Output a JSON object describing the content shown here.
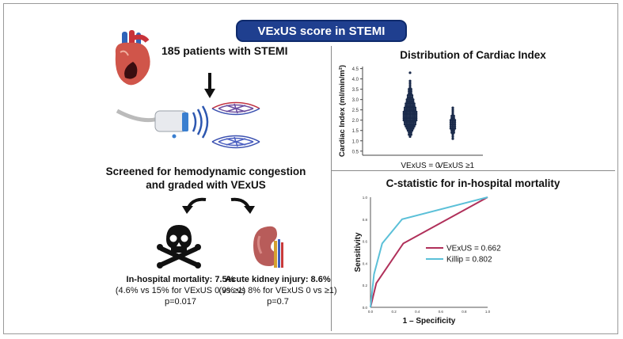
{
  "title": "VExUS score in STEMI",
  "left_panel": {
    "patients": "185 patients with STEMI",
    "screened_line1": "Screened for hemodynamic congestion",
    "screened_line2": "and graded with VExUS",
    "mortality": {
      "label": "In-hospital mortality: 7.5%",
      "detail": "(4.6% vs 15% for VExUS 0 vs ≥1)",
      "p": "p=0.017"
    },
    "aki": {
      "label": "Acute kidney injury: 8.6%",
      "detail": "(9% vs 8% for VExUS 0 vs ≥1)",
      "p": "p=0.7"
    }
  },
  "colors": {
    "title_bg": "#1f3f8f",
    "dots": "#1a2a4a",
    "vexus_line": "#b0305a",
    "killip_line": "#5bc0d8"
  },
  "chart_data": [
    {
      "type": "scatter",
      "title": "Distribution of Cardiac Index",
      "ylabel": "Cardiac Index (ml/min/m²)",
      "ylim": [
        0.3,
        4.6
      ],
      "yticks": [
        "0.5",
        "1.0",
        "1.5",
        "2.0",
        "2.5",
        "3.0",
        "3.5",
        "4.0",
        "4.5"
      ],
      "categories": [
        "VExUS = 0",
        "VExUS ≥1"
      ],
      "series": [
        {
          "name": "VExUS = 0",
          "values": [
            4.3,
            3.9,
            3.8,
            3.7,
            3.6,
            3.5,
            3.5,
            3.4,
            3.4,
            3.3,
            3.3,
            3.2,
            3.2,
            3.2,
            3.1,
            3.1,
            3.1,
            3.0,
            3.0,
            3.0,
            3.0,
            2.9,
            2.9,
            2.9,
            2.9,
            2.8,
            2.8,
            2.8,
            2.8,
            2.8,
            2.7,
            2.7,
            2.7,
            2.7,
            2.7,
            2.6,
            2.6,
            2.6,
            2.6,
            2.6,
            2.6,
            2.5,
            2.5,
            2.5,
            2.5,
            2.5,
            2.5,
            2.4,
            2.4,
            2.4,
            2.4,
            2.4,
            2.4,
            2.4,
            2.3,
            2.3,
            2.3,
            2.3,
            2.3,
            2.3,
            2.3,
            2.2,
            2.2,
            2.2,
            2.2,
            2.2,
            2.2,
            2.2,
            2.1,
            2.1,
            2.1,
            2.1,
            2.1,
            2.1,
            2.1,
            2.0,
            2.0,
            2.0,
            2.0,
            2.0,
            2.0,
            2.0,
            1.9,
            1.9,
            1.9,
            1.9,
            1.9,
            1.9,
            1.8,
            1.8,
            1.8,
            1.8,
            1.8,
            1.8,
            1.7,
            1.7,
            1.7,
            1.7,
            1.7,
            1.6,
            1.6,
            1.6,
            1.6,
            1.5,
            1.5,
            1.5,
            1.4,
            1.4,
            1.3,
            1.3,
            1.2
          ]
        },
        {
          "name": "VExUS ≥1",
          "values": [
            2.6,
            2.5,
            2.4,
            2.3,
            2.2,
            2.2,
            2.1,
            2.1,
            2.0,
            2.0,
            2.0,
            1.9,
            1.9,
            1.9,
            1.8,
            1.8,
            1.8,
            1.7,
            1.7,
            1.7,
            1.6,
            1.6,
            1.6,
            1.5,
            1.5,
            1.4,
            1.4,
            1.3,
            1.2,
            1.1
          ]
        }
      ]
    },
    {
      "type": "line",
      "title": "C-statistic for in-hospital mortality",
      "xlabel": "1 – Specificity",
      "ylabel": "Sensitivity",
      "xlim": [
        0,
        1
      ],
      "ylim": [
        0,
        1
      ],
      "ticks": [
        "0.0",
        "0.2",
        "0.4",
        "0.6",
        "0.8",
        "1.0"
      ],
      "series": [
        {
          "name": "VExUS = 0.662",
          "x": [
            0,
            0.05,
            0.28,
            1.0
          ],
          "y": [
            0,
            0.22,
            0.58,
            1.0
          ]
        },
        {
          "name": "Killip = 0.802",
          "x": [
            0,
            0.03,
            0.1,
            0.27,
            1.0
          ],
          "y": [
            0,
            0.3,
            0.58,
            0.8,
            1.0
          ]
        }
      ]
    }
  ]
}
